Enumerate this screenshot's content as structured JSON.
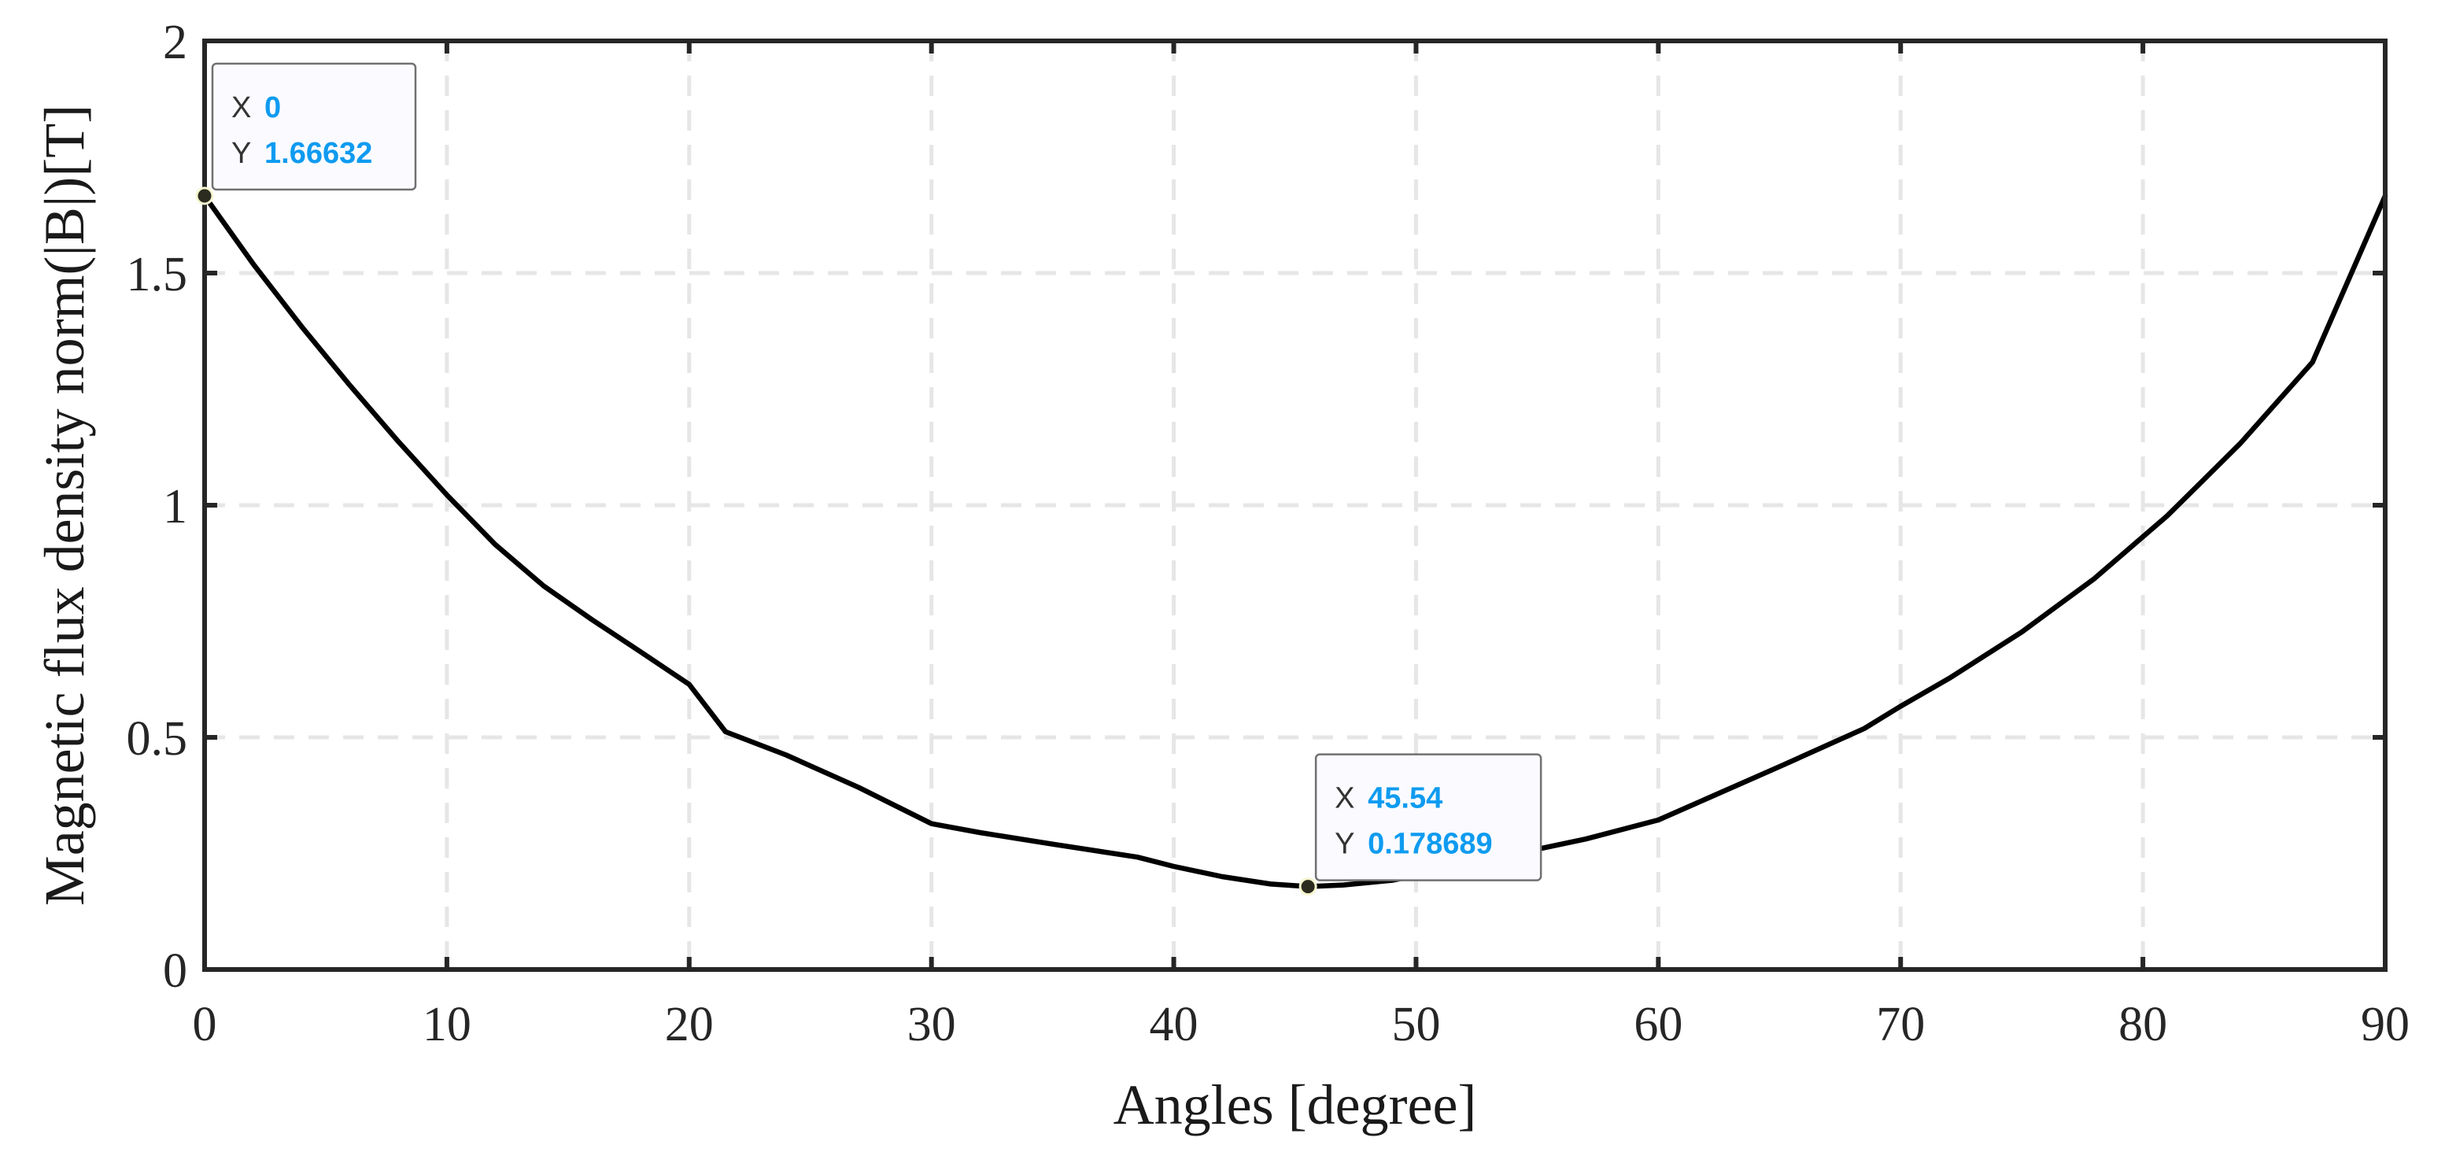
{
  "chart_data": {
    "type": "line",
    "xlabel": "Angles [degree]",
    "ylabel": "Magnetic flux density norm(|B|)[T]",
    "xlim": [
      0,
      90
    ],
    "ylim": [
      0,
      2
    ],
    "xticks": [
      "0",
      "10",
      "20",
      "30",
      "40",
      "50",
      "60",
      "70",
      "80",
      "90"
    ],
    "yticks": [
      "0",
      "0.5",
      "1",
      "1.5",
      "2"
    ],
    "grid": true,
    "series": [
      {
        "x": [
          0,
          2,
          4,
          6,
          8,
          10,
          12,
          14,
          16,
          18,
          20,
          21.5,
          24,
          27,
          30,
          32,
          35,
          38.5,
          40,
          42,
          44,
          45.54,
          47,
          49,
          51,
          54,
          57,
          60,
          62,
          65,
          68.5,
          70,
          72,
          75,
          78,
          81,
          84,
          87,
          90
        ],
        "y": [
          1.66632,
          1.52,
          1.385,
          1.258,
          1.137,
          1.022,
          0.915,
          0.826,
          0.753,
          0.684,
          0.614,
          0.512,
          0.462,
          0.392,
          0.314,
          0.295,
          0.27,
          0.242,
          0.222,
          0.2,
          0.184,
          0.178689,
          0.182,
          0.192,
          0.213,
          0.248,
          0.281,
          0.322,
          0.368,
          0.437,
          0.519,
          0.567,
          0.627,
          0.727,
          0.842,
          0.977,
          1.132,
          1.308,
          1.66632
        ]
      }
    ],
    "datatips": [
      {
        "x_key": "X",
        "x_value": "0",
        "y_key": "Y",
        "y_value": "1.66632",
        "x": 0,
        "y": 1.66632
      },
      {
        "x_key": "X",
        "x_value": "45.54",
        "y_key": "Y",
        "y_value": "0.178689",
        "x": 45.54,
        "y": 0.178689
      }
    ],
    "colors": {
      "line": "#000000",
      "axes": "#262626",
      "grid": "#e6e6e6",
      "datatip_value": "#0f9bf0",
      "datatip_bg": "#fbfbff",
      "datatip_border": "#707070",
      "marker": "#2b2b1f"
    }
  }
}
